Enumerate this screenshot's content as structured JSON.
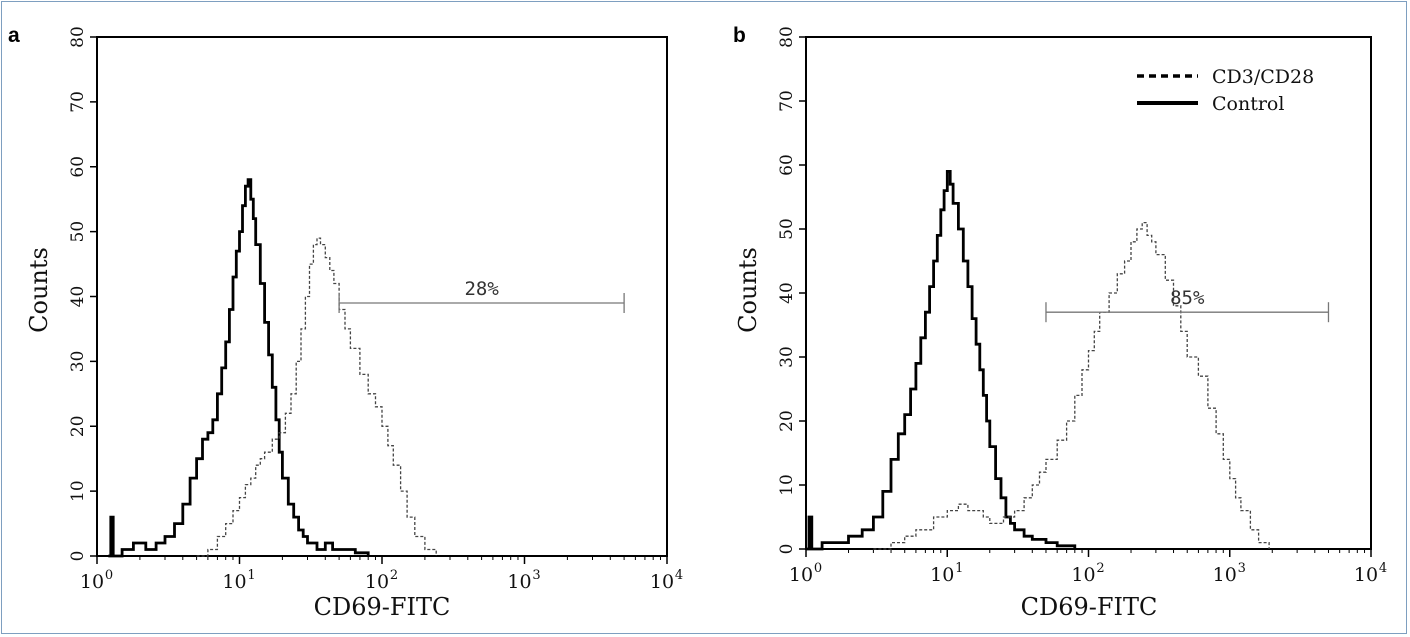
{
  "chart_data": [
    {
      "type": "line",
      "panel_label": "a",
      "xlabel": "CD69-FITC",
      "ylabel": "Counts",
      "x_scale": "log",
      "xlim": [
        1,
        10000
      ],
      "ylim": [
        0,
        80
      ],
      "x_ticks": [
        "10^0",
        "10^1",
        "10^2",
        "10^3",
        "10^4"
      ],
      "y_ticks": [
        0,
        10,
        20,
        30,
        40,
        50,
        60,
        70,
        80
      ],
      "gate": {
        "label": "28%",
        "x_start": 50,
        "x_end": 5000,
        "y": 39
      },
      "legend": null,
      "series": [
        {
          "name": "Control",
          "style": "solid",
          "points": [
            [
              1.2,
              0
            ],
            [
              1.25,
              6
            ],
            [
              1.3,
              0
            ],
            [
              1.5,
              1
            ],
            [
              1.8,
              2
            ],
            [
              2.2,
              1
            ],
            [
              2.6,
              2
            ],
            [
              3,
              3
            ],
            [
              3.5,
              5
            ],
            [
              4,
              8
            ],
            [
              4.5,
              12
            ],
            [
              5,
              15
            ],
            [
              5.5,
              18
            ],
            [
              6,
              19
            ],
            [
              6.5,
              21
            ],
            [
              7,
              25
            ],
            [
              7.5,
              29
            ],
            [
              8,
              33
            ],
            [
              8.5,
              38
            ],
            [
              9,
              43
            ],
            [
              9.5,
              47
            ],
            [
              10,
              50
            ],
            [
              10.5,
              54
            ],
            [
              11,
              57
            ],
            [
              11.5,
              58
            ],
            [
              12,
              55
            ],
            [
              12.5,
              52
            ],
            [
              13,
              48
            ],
            [
              14,
              42
            ],
            [
              15,
              36
            ],
            [
              16,
              31
            ],
            [
              17,
              26
            ],
            [
              18,
              21
            ],
            [
              19,
              16
            ],
            [
              20,
              12
            ],
            [
              22,
              8
            ],
            [
              24,
              6
            ],
            [
              26,
              4
            ],
            [
              28,
              3
            ],
            [
              30,
              2
            ],
            [
              35,
              1
            ],
            [
              40,
              2
            ],
            [
              45,
              1
            ],
            [
              55,
              1
            ],
            [
              65,
              0.5
            ],
            [
              80,
              0
            ]
          ]
        },
        {
          "name": "CD3/CD28",
          "style": "dashed",
          "points": [
            [
              5,
              0
            ],
            [
              6,
              1
            ],
            [
              7,
              3
            ],
            [
              8,
              5
            ],
            [
              9,
              7
            ],
            [
              10,
              9
            ],
            [
              11,
              11
            ],
            [
              12,
              12
            ],
            [
              13,
              14
            ],
            [
              14,
              15
            ],
            [
              15,
              16
            ],
            [
              17,
              18
            ],
            [
              19,
              19
            ],
            [
              21,
              22
            ],
            [
              23,
              25
            ],
            [
              25,
              30
            ],
            [
              27,
              35
            ],
            [
              29,
              40
            ],
            [
              31,
              45
            ],
            [
              33,
              48
            ],
            [
              35,
              49
            ],
            [
              37,
              48
            ],
            [
              40,
              46
            ],
            [
              43,
              44
            ],
            [
              46,
              42
            ],
            [
              50,
              38
            ],
            [
              55,
              35
            ],
            [
              60,
              32
            ],
            [
              70,
              28
            ],
            [
              80,
              25
            ],
            [
              90,
              23
            ],
            [
              100,
              20
            ],
            [
              110,
              17
            ],
            [
              120,
              14
            ],
            [
              135,
              10
            ],
            [
              150,
              6
            ],
            [
              170,
              3
            ],
            [
              200,
              1
            ],
            [
              240,
              0
            ]
          ]
        }
      ]
    },
    {
      "type": "line",
      "panel_label": "b",
      "xlabel": "CD69-FITC",
      "ylabel": "Counts",
      "x_scale": "log",
      "xlim": [
        1,
        10000
      ],
      "ylim": [
        0,
        80
      ],
      "x_ticks": [
        "10^0",
        "10^1",
        "10^2",
        "10^3",
        "10^4"
      ],
      "y_ticks": [
        0,
        10,
        20,
        30,
        40,
        50,
        60,
        70,
        80
      ],
      "gate": {
        "label": "85%",
        "x_start": 50,
        "x_end": 5000,
        "y": 37
      },
      "legend": {
        "position": "top-right",
        "entries": [
          {
            "label": "CD3/CD28",
            "style": "dashed"
          },
          {
            "label": "Control",
            "style": "solid"
          }
        ]
      },
      "series": [
        {
          "name": "Control",
          "style": "solid",
          "points": [
            [
              1.0,
              0
            ],
            [
              1.05,
              5
            ],
            [
              1.1,
              0
            ],
            [
              1.3,
              1
            ],
            [
              1.6,
              1
            ],
            [
              2,
              2
            ],
            [
              2.5,
              3
            ],
            [
              3,
              5
            ],
            [
              3.5,
              9
            ],
            [
              4,
              14
            ],
            [
              4.5,
              18
            ],
            [
              5,
              21
            ],
            [
              5.5,
              25
            ],
            [
              6,
              29
            ],
            [
              6.5,
              33
            ],
            [
              7,
              37
            ],
            [
              7.5,
              41
            ],
            [
              8,
              45
            ],
            [
              8.5,
              49
            ],
            [
              9,
              53
            ],
            [
              9.5,
              56
            ],
            [
              10,
              59
            ],
            [
              10.5,
              57
            ],
            [
              11,
              54
            ],
            [
              12,
              50
            ],
            [
              13,
              45
            ],
            [
              14,
              41
            ],
            [
              15,
              36
            ],
            [
              16,
              32
            ],
            [
              17,
              28
            ],
            [
              18,
              24
            ],
            [
              19,
              20
            ],
            [
              20,
              16
            ],
            [
              22,
              11
            ],
            [
              24,
              8
            ],
            [
              26,
              5
            ],
            [
              28,
              4
            ],
            [
              30,
              3
            ],
            [
              35,
              2
            ],
            [
              40,
              1.5
            ],
            [
              50,
              1
            ],
            [
              60,
              0.5
            ],
            [
              80,
              0
            ]
          ]
        },
        {
          "name": "CD3/CD28",
          "style": "dashed",
          "points": [
            [
              3,
              0
            ],
            [
              4,
              1
            ],
            [
              5,
              2
            ],
            [
              6,
              3
            ],
            [
              8,
              5
            ],
            [
              10,
              6
            ],
            [
              12,
              7
            ],
            [
              14,
              6
            ],
            [
              16,
              6
            ],
            [
              18,
              5
            ],
            [
              20,
              4
            ],
            [
              25,
              5
            ],
            [
              30,
              6
            ],
            [
              35,
              8
            ],
            [
              40,
              10
            ],
            [
              45,
              12
            ],
            [
              50,
              14
            ],
            [
              60,
              17
            ],
            [
              70,
              20
            ],
            [
              80,
              24
            ],
            [
              90,
              28
            ],
            [
              100,
              31
            ],
            [
              110,
              34
            ],
            [
              120,
              37
            ],
            [
              140,
              40
            ],
            [
              160,
              43
            ],
            [
              180,
              45
            ],
            [
              200,
              48
            ],
            [
              220,
              50
            ],
            [
              240,
              51
            ],
            [
              260,
              49
            ],
            [
              280,
              48
            ],
            [
              300,
              46
            ],
            [
              350,
              42
            ],
            [
              400,
              38
            ],
            [
              450,
              34
            ],
            [
              500,
              30
            ],
            [
              600,
              27
            ],
            [
              700,
              22
            ],
            [
              800,
              18
            ],
            [
              900,
              14
            ],
            [
              1000,
              11
            ],
            [
              1100,
              8
            ],
            [
              1200,
              6
            ],
            [
              1400,
              3
            ],
            [
              1600,
              1
            ],
            [
              1900,
              0
            ]
          ]
        }
      ]
    }
  ]
}
